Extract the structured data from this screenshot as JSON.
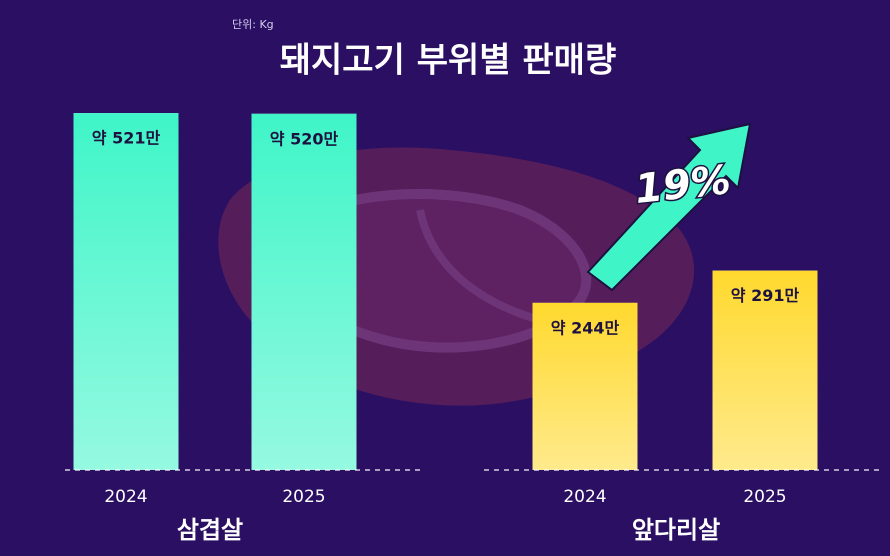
{
  "title": "돼지고기 부위별 판매량",
  "unit": "단위: Kg",
  "chart_data": [
    {
      "type": "bar",
      "xlabel": "삼겹살",
      "categories": [
        "2024",
        "2025"
      ],
      "values": [
        521,
        520
      ],
      "value_labels": [
        "약 521만",
        "약 520만"
      ],
      "color": "#3ff5c8"
    },
    {
      "type": "bar",
      "xlabel": "앞다리살",
      "categories": [
        "2024",
        "2025"
      ],
      "values": [
        244,
        291
      ],
      "value_labels": [
        "약 244만",
        "약 291만"
      ],
      "color": "#ffd92e",
      "annotation": "19%"
    }
  ]
}
